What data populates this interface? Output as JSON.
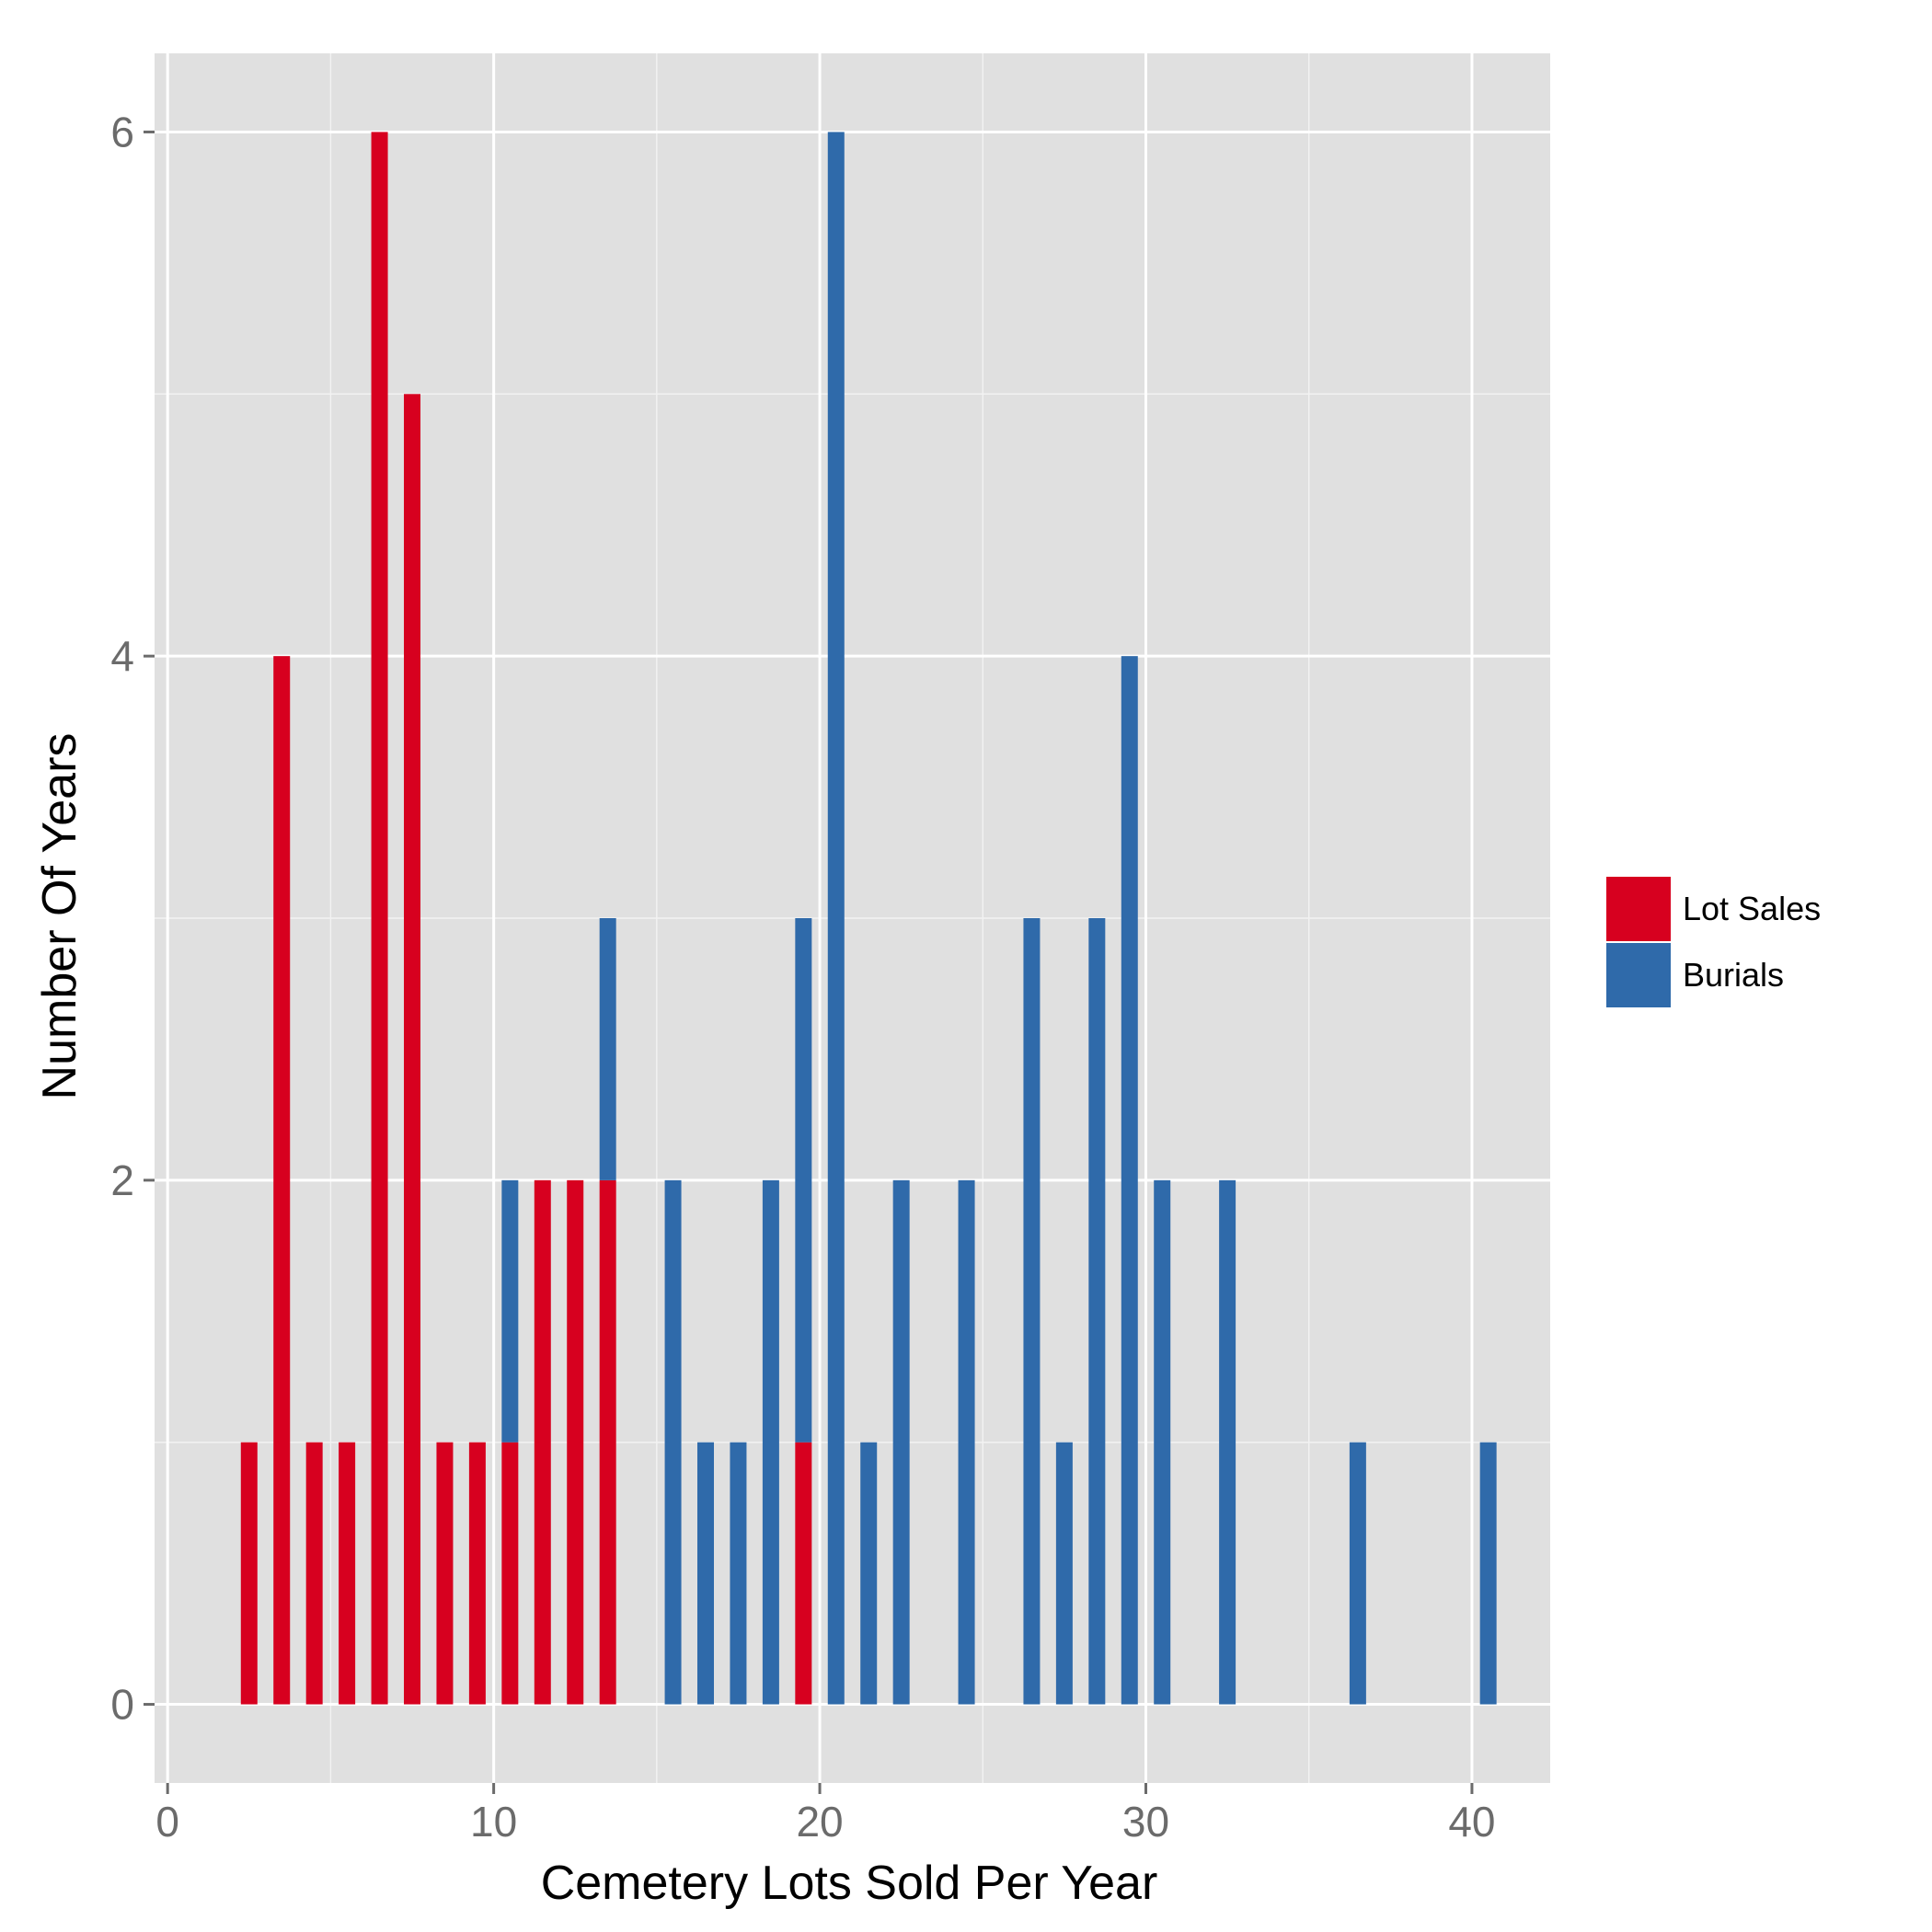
{
  "chart_data": {
    "type": "bar",
    "stacked": true,
    "title": "",
    "xlabel": "Cemetery Lots Sold Per Year",
    "ylabel": "Number Of Years",
    "xlim": [
      -0.4,
      42.4
    ],
    "ylim": [
      -0.3,
      6.3
    ],
    "x_ticks": [
      0,
      10,
      20,
      30,
      40
    ],
    "y_ticks": [
      0,
      2,
      4,
      6
    ],
    "grid": true,
    "legend_position": "right",
    "series": [
      {
        "name": "Lot Sales",
        "color": "#d7001f",
        "points": [
          {
            "x": 2.5,
            "y": 1
          },
          {
            "x": 3.5,
            "y": 4
          },
          {
            "x": 4.5,
            "y": 1
          },
          {
            "x": 5.5,
            "y": 1
          },
          {
            "x": 6.5,
            "y": 6
          },
          {
            "x": 7.5,
            "y": 5
          },
          {
            "x": 8.5,
            "y": 1
          },
          {
            "x": 9.5,
            "y": 1
          },
          {
            "x": 10.5,
            "y": 1
          },
          {
            "x": 11.5,
            "y": 2
          },
          {
            "x": 12.5,
            "y": 2
          },
          {
            "x": 13.5,
            "y": 2
          },
          {
            "x": 19.5,
            "y": 1
          }
        ]
      },
      {
        "name": "Burials",
        "color": "#2f6aaa",
        "points": [
          {
            "x": 10.5,
            "y": 1
          },
          {
            "x": 13.5,
            "y": 1
          },
          {
            "x": 15.5,
            "y": 2
          },
          {
            "x": 16.5,
            "y": 1
          },
          {
            "x": 17.5,
            "y": 1
          },
          {
            "x": 18.5,
            "y": 2
          },
          {
            "x": 19.5,
            "y": 2
          },
          {
            "x": 20.5,
            "y": 6
          },
          {
            "x": 21.5,
            "y": 1
          },
          {
            "x": 22.5,
            "y": 2
          },
          {
            "x": 24.5,
            "y": 2
          },
          {
            "x": 26.5,
            "y": 3
          },
          {
            "x": 27.5,
            "y": 1
          },
          {
            "x": 28.5,
            "y": 3
          },
          {
            "x": 29.5,
            "y": 4
          },
          {
            "x": 30.5,
            "y": 2
          },
          {
            "x": 32.5,
            "y": 2
          },
          {
            "x": 36.5,
            "y": 1
          },
          {
            "x": 40.5,
            "y": 1
          }
        ]
      }
    ]
  }
}
